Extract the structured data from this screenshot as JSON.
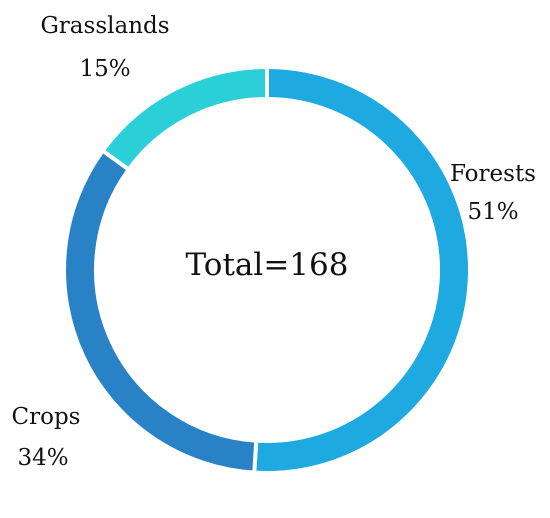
{
  "chart_data": {
    "type": "pie",
    "variant": "donut",
    "center_label": "Total=168",
    "categories": [
      "Forests",
      "Crops",
      "Grasslands"
    ],
    "values": [
      51,
      34,
      15
    ],
    "value_labels": [
      "51%",
      "34%",
      "15%"
    ],
    "colors": [
      "#1ea9e1",
      "#2a82c6",
      "#2bcfd8"
    ],
    "start_angle_deg": 0,
    "direction": "clockwise"
  }
}
